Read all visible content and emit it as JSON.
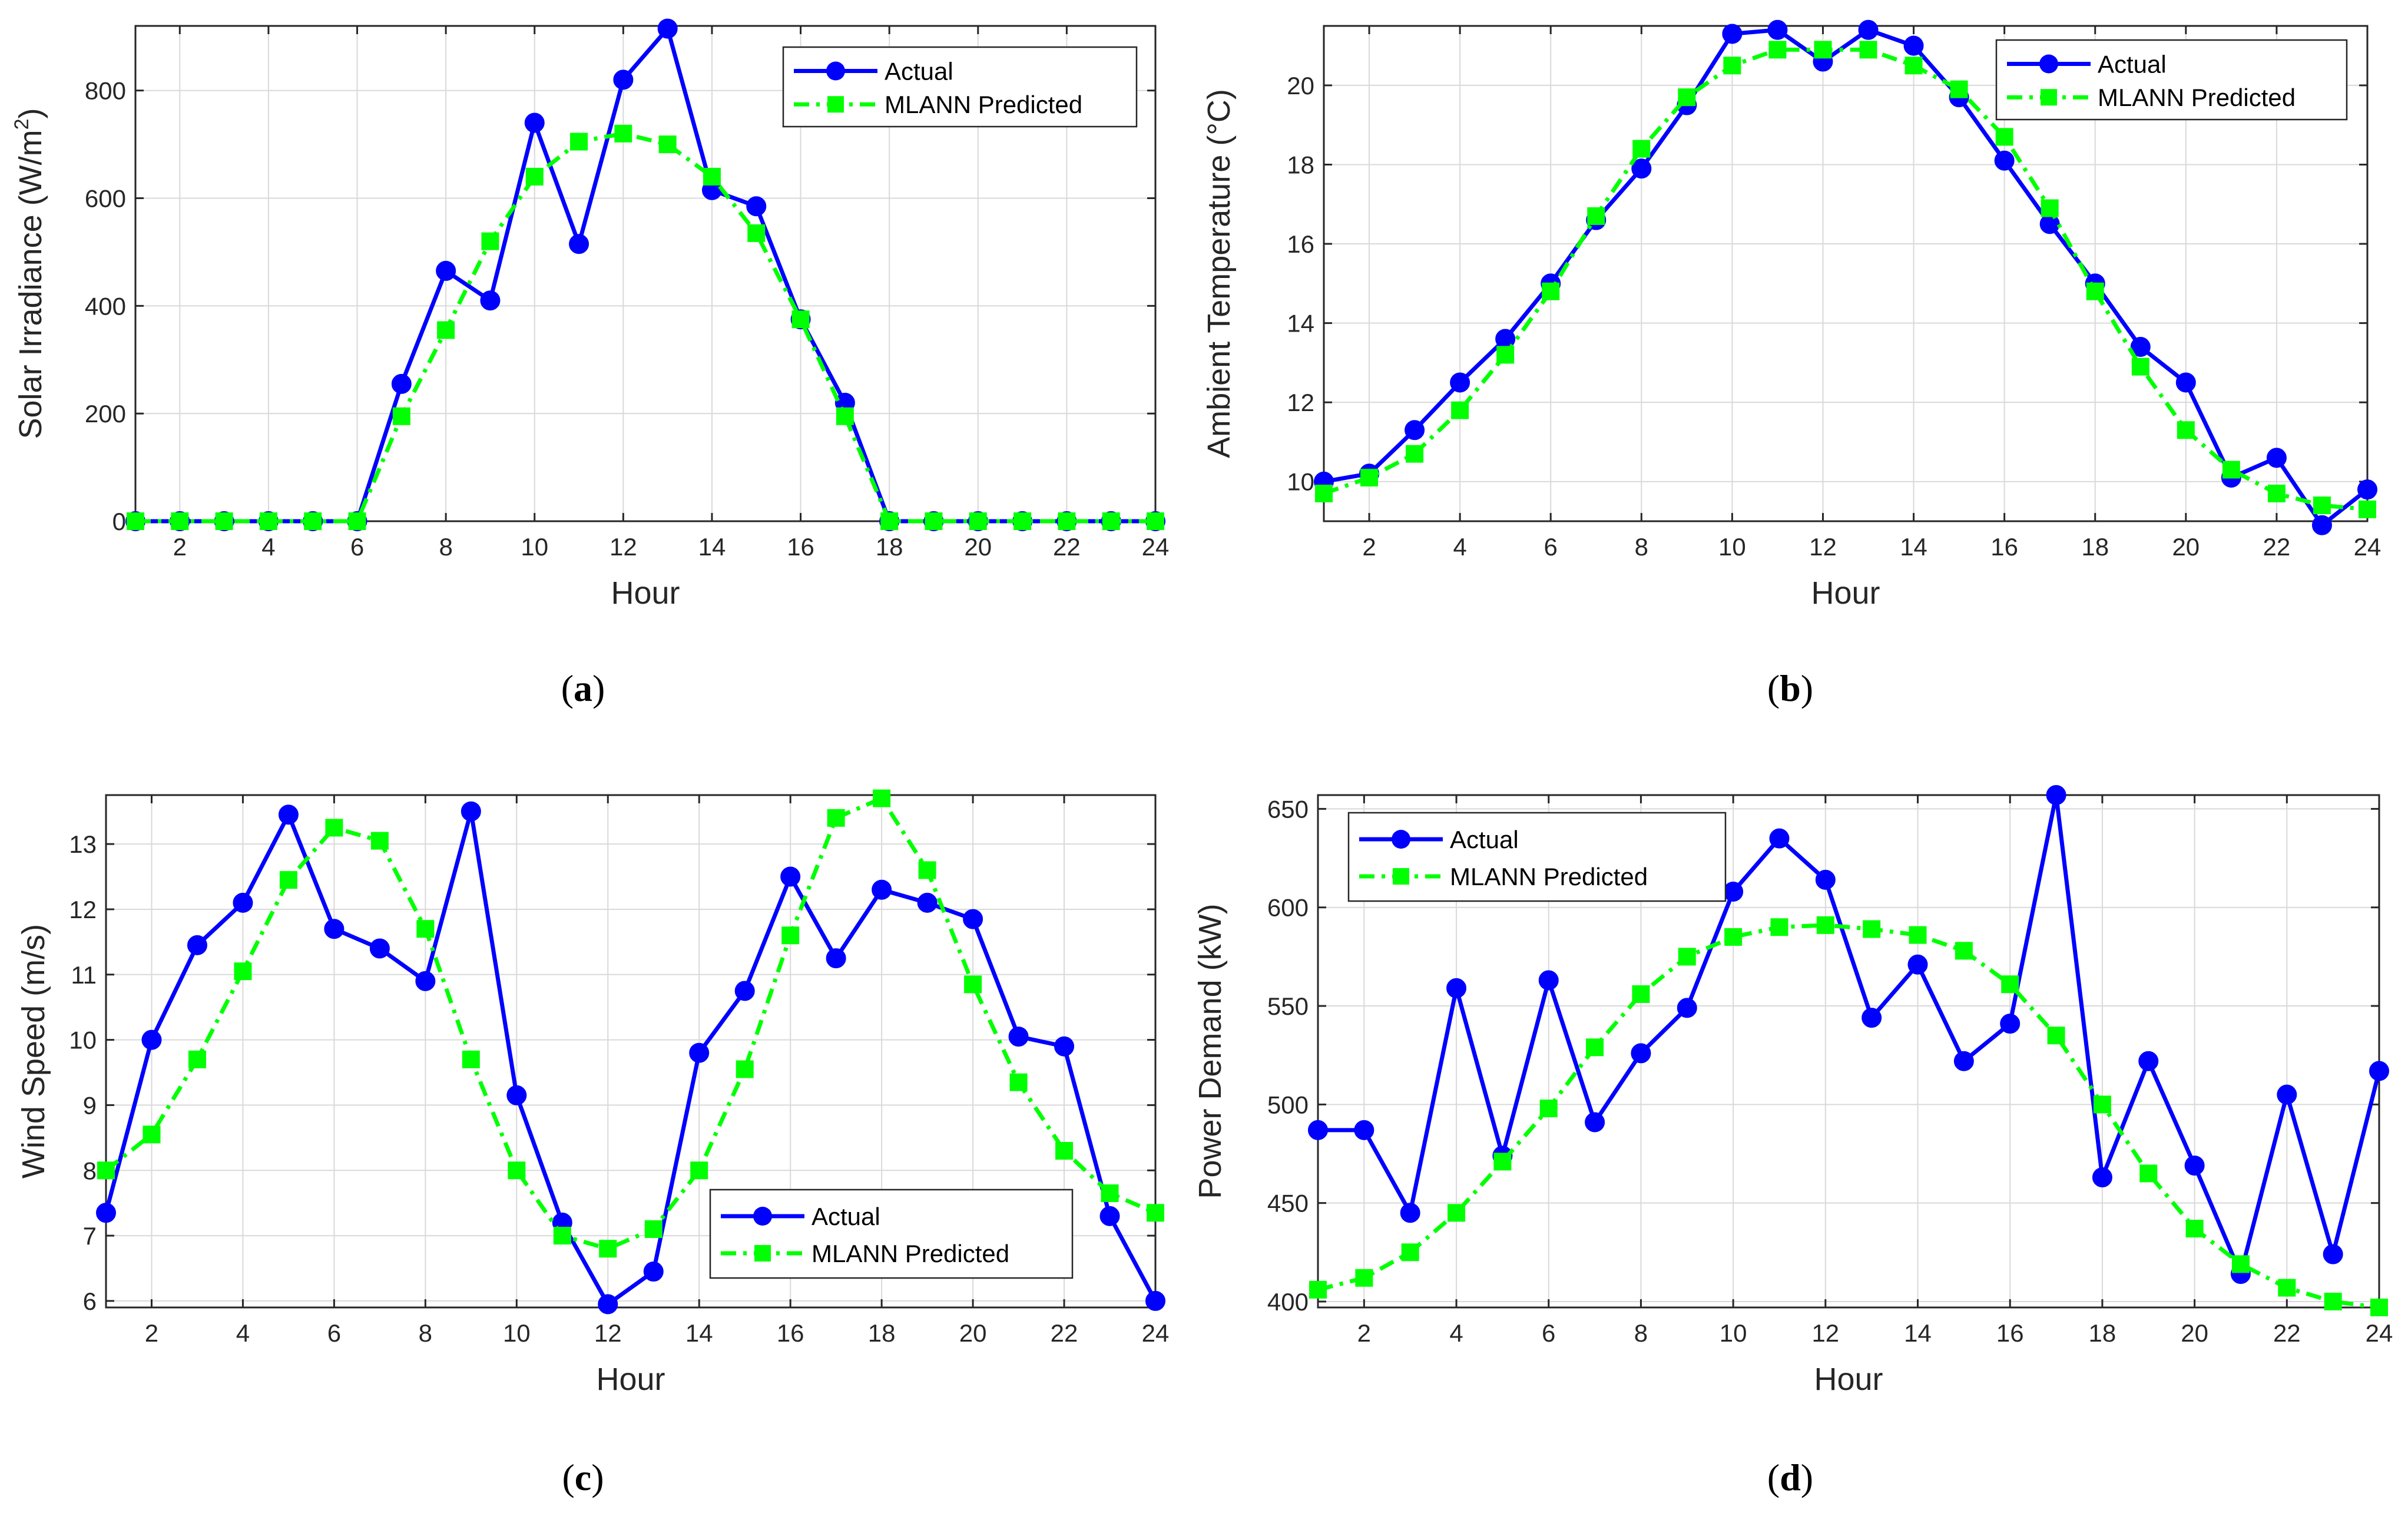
{
  "figure": {
    "panels": [
      "(a)",
      "(b)",
      "(c)",
      "(d)"
    ]
  },
  "colors": {
    "actual": "#0000FF",
    "predicted": "#00FF00",
    "grid": "#D9D9D9",
    "axes": "#262626"
  },
  "chart_data": [
    {
      "panel": "a",
      "type": "line",
      "caption_letter": "a",
      "xlabel": "Hour",
      "ylabel_html": "Solar Irradiance (W/m²)",
      "ylabel_main": "Solar Irradiance (W/m",
      "ylabel_sup": "2",
      "ylabel_end": ")",
      "xlim": [
        1,
        24
      ],
      "ylim": [
        0,
        920
      ],
      "xticks": [
        2,
        4,
        6,
        8,
        10,
        12,
        14,
        16,
        18,
        20,
        22,
        24
      ],
      "yticks": [
        0,
        200,
        400,
        600,
        800
      ],
      "legend_position": "top-right",
      "x": [
        1,
        2,
        3,
        4,
        5,
        6,
        7,
        8,
        9,
        10,
        11,
        12,
        13,
        14,
        15,
        16,
        17,
        18,
        19,
        20,
        21,
        22,
        23,
        24
      ],
      "series": [
        {
          "name": "Actual",
          "style": "solid-circle",
          "values": [
            0,
            0,
            0,
            0,
            0,
            0,
            255,
            465,
            410,
            740,
            515,
            820,
            915,
            615,
            585,
            375,
            220,
            0,
            0,
            0,
            0,
            0,
            0,
            0
          ]
        },
        {
          "name": "MLANN Predicted",
          "style": "dashdot-square",
          "values": [
            0,
            0,
            0,
            0,
            0,
            0,
            195,
            355,
            520,
            640,
            705,
            720,
            700,
            640,
            535,
            375,
            195,
            0,
            0,
            0,
            0,
            0,
            0,
            0
          ]
        }
      ]
    },
    {
      "panel": "b",
      "type": "line",
      "caption_letter": "b",
      "xlabel": "Hour",
      "ylabel_main": "Ambient Temperature (°C)",
      "xlim": [
        1,
        24
      ],
      "ylim": [
        9,
        21.5
      ],
      "xticks": [
        2,
        4,
        6,
        8,
        10,
        12,
        14,
        16,
        18,
        20,
        22,
        24
      ],
      "yticks": [
        10,
        12,
        14,
        16,
        18,
        20
      ],
      "legend_position": "top-right",
      "x": [
        1,
        2,
        3,
        4,
        5,
        6,
        7,
        8,
        9,
        10,
        11,
        12,
        13,
        14,
        15,
        16,
        17,
        18,
        19,
        20,
        21,
        22,
        23,
        24
      ],
      "series": [
        {
          "name": "Actual",
          "style": "solid-circle",
          "values": [
            10,
            10.2,
            11.3,
            12.5,
            13.6,
            15,
            16.6,
            17.9,
            19.5,
            21.3,
            21.4,
            20.6,
            21.4,
            21,
            19.7,
            18.1,
            16.5,
            15,
            13.4,
            12.5,
            10.1,
            10.6,
            8.9,
            9.8
          ]
        },
        {
          "name": "MLANN Predicted",
          "style": "dashdot-square",
          "values": [
            9.7,
            10.1,
            10.7,
            11.8,
            13.2,
            14.8,
            16.7,
            18.4,
            19.7,
            20.5,
            20.9,
            20.9,
            20.9,
            20.5,
            19.9,
            18.7,
            16.9,
            14.8,
            12.9,
            11.3,
            10.3,
            9.7,
            9.4,
            9.3
          ]
        }
      ]
    },
    {
      "panel": "c",
      "type": "line",
      "caption_letter": "c",
      "xlabel": "Hour",
      "ylabel_main": "Wind Speed (m/s)",
      "xlim": [
        1,
        24
      ],
      "ylim": [
        5.9,
        13.75
      ],
      "xticks": [
        2,
        4,
        6,
        8,
        10,
        12,
        14,
        16,
        18,
        20,
        22,
        24
      ],
      "yticks": [
        6,
        7,
        8,
        9,
        10,
        11,
        12,
        13
      ],
      "legend_position": "bottom-right",
      "x": [
        1,
        2,
        3,
        4,
        5,
        6,
        7,
        8,
        9,
        10,
        11,
        12,
        13,
        14,
        15,
        16,
        17,
        18,
        19,
        20,
        21,
        22,
        23,
        24
      ],
      "series": [
        {
          "name": "Actual",
          "style": "solid-circle",
          "values": [
            7.35,
            10,
            11.45,
            12.1,
            13.45,
            11.7,
            11.4,
            10.9,
            13.5,
            9.15,
            7.2,
            5.95,
            6.45,
            9.8,
            10.75,
            12.5,
            11.25,
            12.3,
            12.1,
            11.85,
            10.05,
            9.9,
            7.3,
            6
          ]
        },
        {
          "name": "MLANN Predicted",
          "style": "dashdot-square",
          "values": [
            8,
            8.55,
            9.7,
            11.05,
            12.45,
            13.25,
            13.05,
            11.7,
            9.7,
            8,
            7,
            6.8,
            7.1,
            8,
            9.55,
            11.6,
            13.4,
            13.7,
            12.6,
            10.85,
            9.35,
            8.3,
            7.65,
            7.35
          ]
        }
      ]
    },
    {
      "panel": "d",
      "type": "line",
      "caption_letter": "d",
      "xlabel": "Hour",
      "ylabel_main": "Power Demand (kW)",
      "xlim": [
        1,
        24
      ],
      "ylim": [
        397,
        657
      ],
      "xticks": [
        2,
        4,
        6,
        8,
        10,
        12,
        14,
        16,
        18,
        20,
        22,
        24
      ],
      "yticks": [
        400,
        450,
        500,
        550,
        600,
        650
      ],
      "legend_position": "top-left",
      "x": [
        1,
        2,
        3,
        4,
        5,
        6,
        7,
        8,
        9,
        10,
        11,
        12,
        13,
        14,
        15,
        16,
        17,
        18,
        19,
        20,
        21,
        22,
        23,
        24
      ],
      "series": [
        {
          "name": "Actual",
          "style": "solid-circle",
          "values": [
            487,
            487,
            445,
            559,
            474,
            563,
            491,
            526,
            549,
            608,
            635,
            614,
            544,
            571,
            522,
            541,
            657,
            463,
            522,
            469,
            414,
            505,
            424,
            517
          ]
        },
        {
          "name": "MLANN Predicted",
          "style": "dashdot-square",
          "values": [
            406,
            412,
            425,
            445,
            471,
            498,
            529,
            556,
            575,
            585,
            590,
            591,
            589,
            586,
            578,
            561,
            535,
            500,
            465,
            437,
            419,
            407,
            400,
            397
          ]
        }
      ]
    }
  ]
}
